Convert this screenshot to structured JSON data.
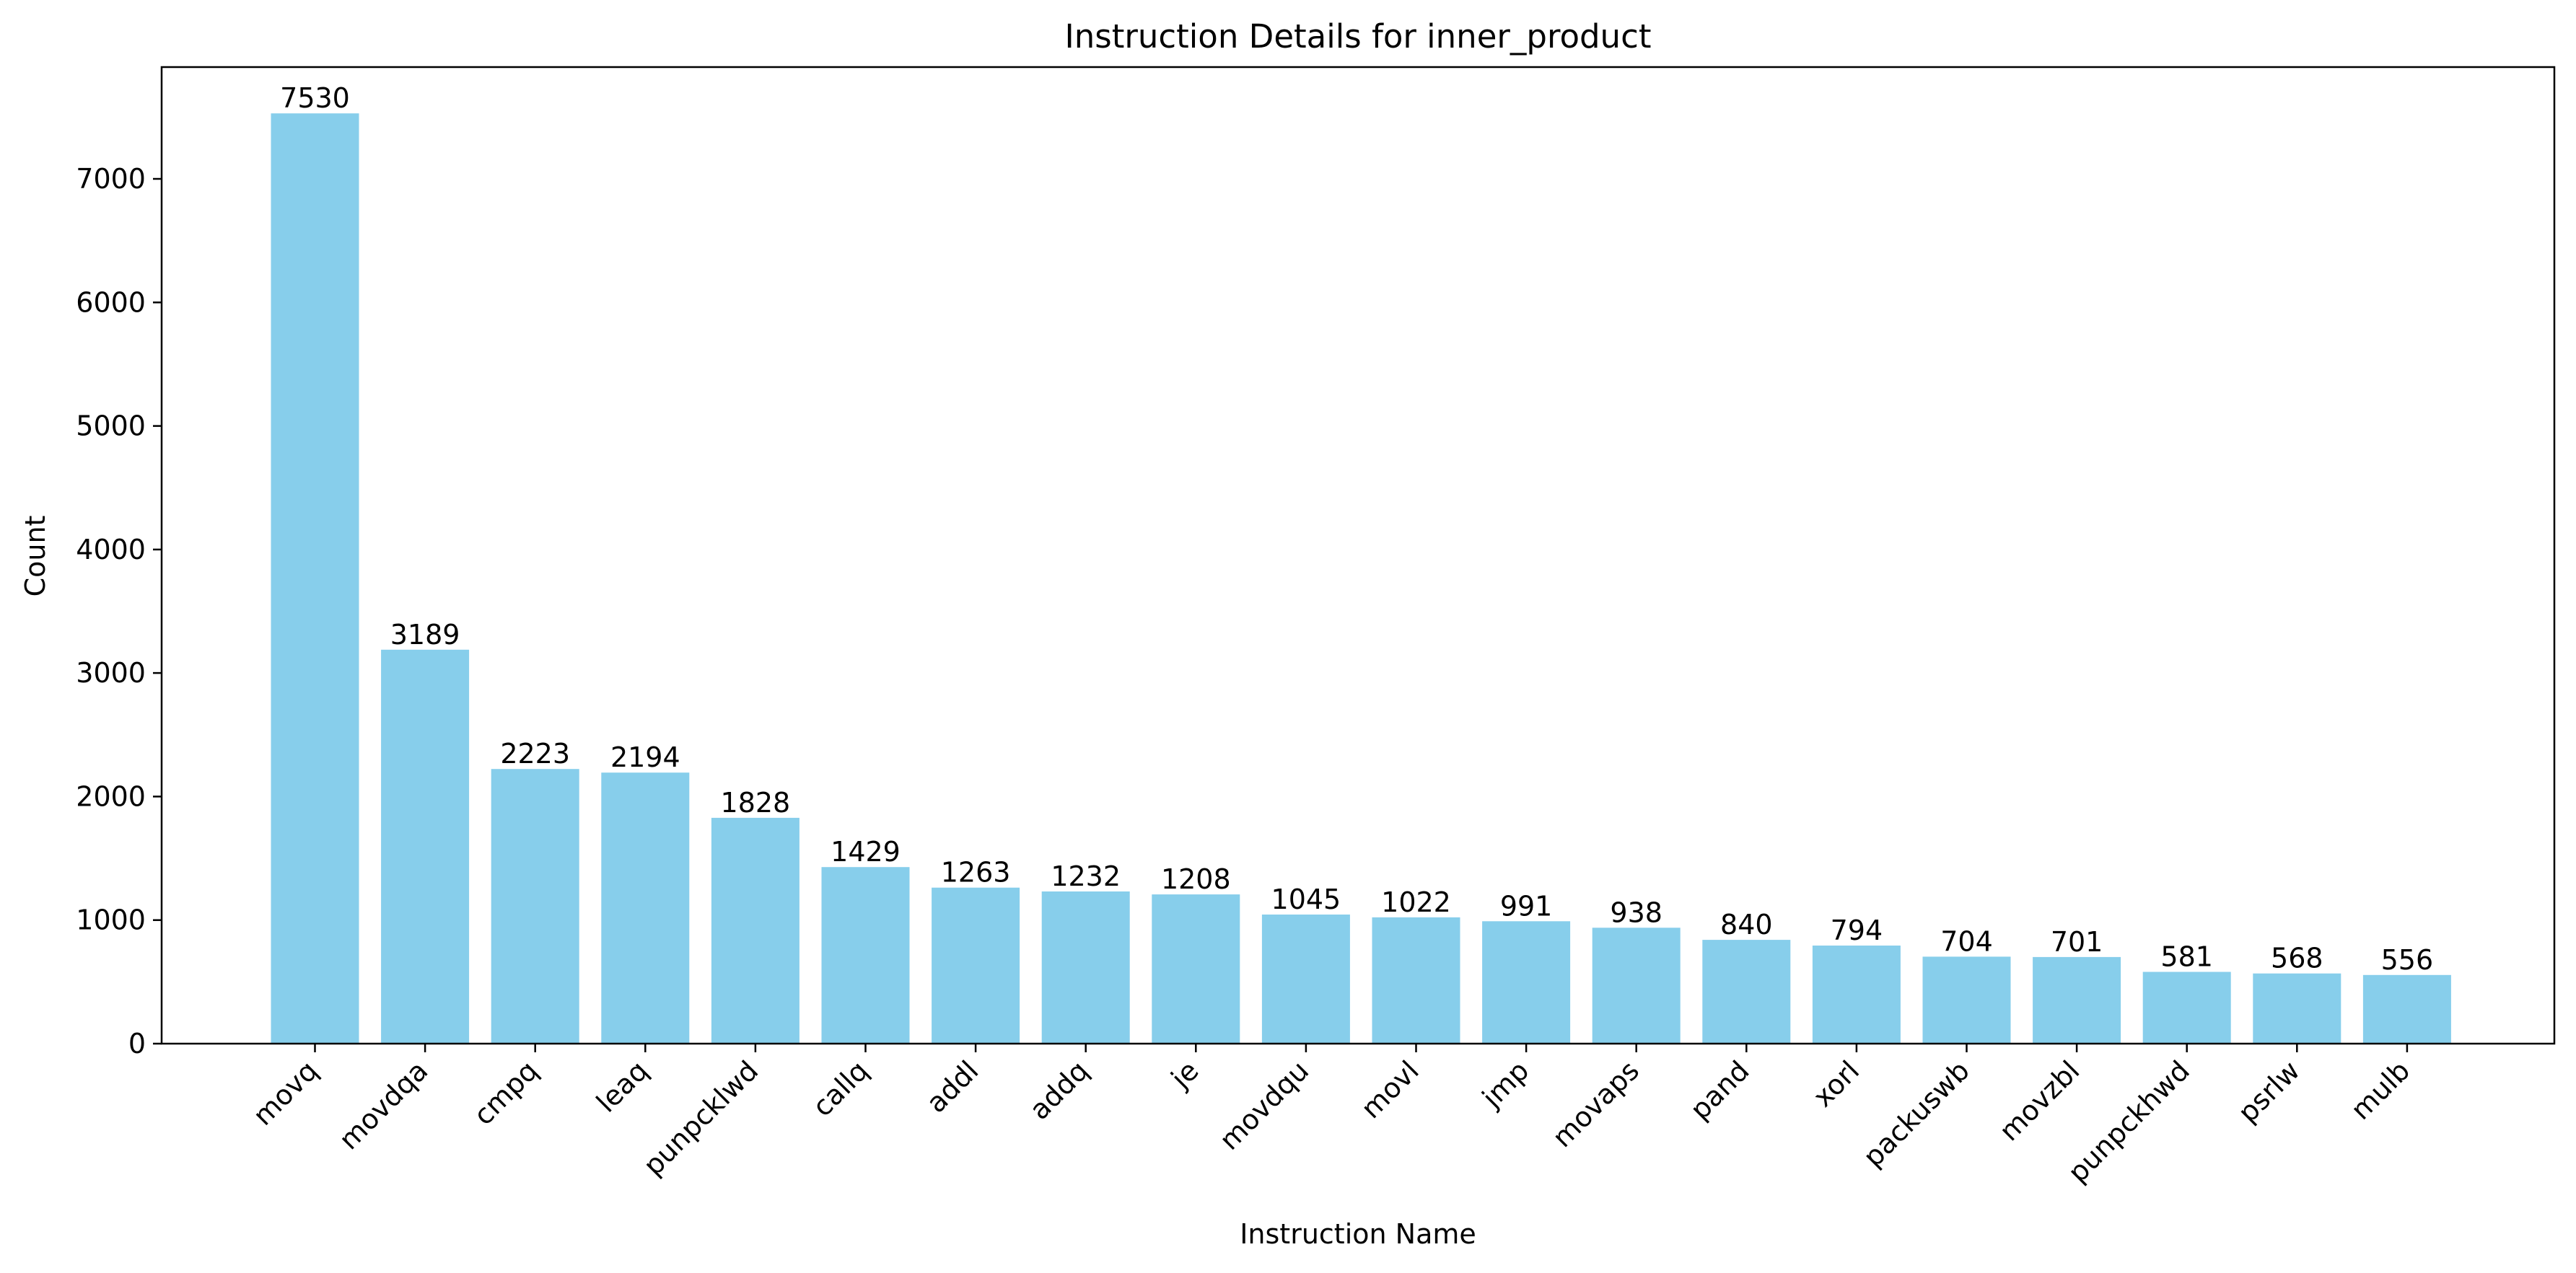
{
  "chart_data": {
    "type": "bar",
    "title": "Instruction Details for inner_product",
    "xlabel": "Instruction Name",
    "ylabel": "Count",
    "categories": [
      "movq",
      "movdqa",
      "cmpq",
      "leaq",
      "punpcklwd",
      "callq",
      "addl",
      "addq",
      "je",
      "movdqu",
      "movl",
      "jmp",
      "movaps",
      "pand",
      "xorl",
      "packuswb",
      "movzbl",
      "punpckhwd",
      "psrlw",
      "mulb"
    ],
    "values": [
      7530,
      3189,
      2223,
      2194,
      1828,
      1429,
      1263,
      1232,
      1208,
      1045,
      1022,
      991,
      938,
      840,
      794,
      704,
      701,
      581,
      568,
      556
    ],
    "ylim": [
      0,
      7905
    ],
    "yticks": [
      0,
      1000,
      2000,
      3000,
      4000,
      5000,
      6000,
      7000
    ],
    "bar_color": "#87ceeb",
    "grid": false,
    "legend": "none",
    "x_tick_rotation": 45
  }
}
